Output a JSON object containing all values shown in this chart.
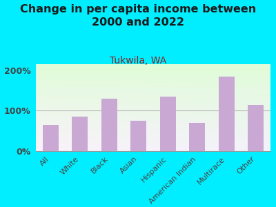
{
  "title": "Change in per capita income between\n2000 and 2022",
  "subtitle": "Tukwila, WA",
  "categories": [
    "All",
    "White",
    "Black",
    "Asian",
    "Hispanic",
    "American Indian",
    "Multirace",
    "Other"
  ],
  "values": [
    65,
    85,
    130,
    75,
    135,
    70,
    185,
    115
  ],
  "bar_color": "#c9a8d4",
  "title_fontsize": 11.5,
  "subtitle_fontsize": 10,
  "subtitle_color": "#8b2020",
  "title_color": "#1a1a1a",
  "background_outer": "#00eeff",
  "ylim": [
    0,
    215
  ],
  "yticks": [
    0,
    100,
    200
  ],
  "ytick_labels": [
    "0%",
    "100%",
    "200%"
  ],
  "grid_color": "#bbbbbb",
  "tick_color": "#444444"
}
